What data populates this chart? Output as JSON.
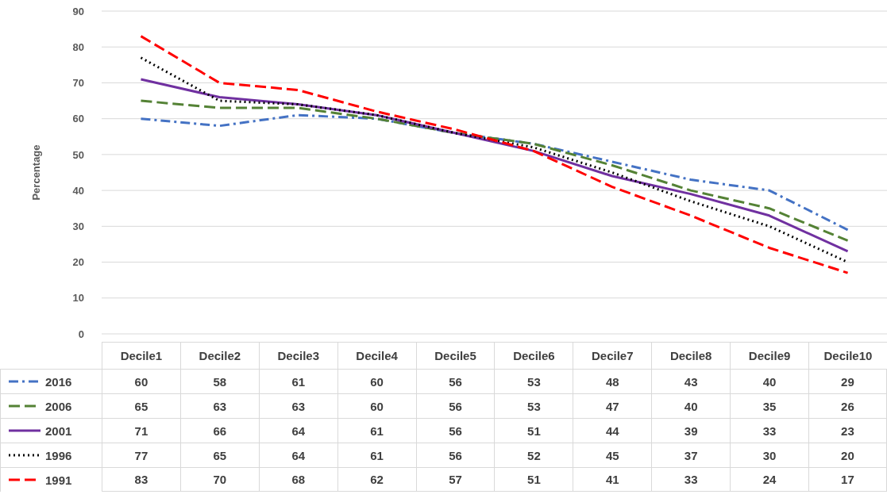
{
  "chart_data": {
    "type": "line",
    "ylabel": "Percentage",
    "categories": [
      "Decile1",
      "Decile2",
      "Decile3",
      "Decile4",
      "Decile5",
      "Decile6",
      "Decile7",
      "Decile8",
      "Decile9",
      "Decile10"
    ],
    "series": [
      {
        "name": "2016",
        "color": "#4472c4",
        "line_style": "dashdot",
        "values": [
          60,
          58,
          61,
          60,
          56,
          53,
          48,
          43,
          40,
          29
        ]
      },
      {
        "name": "2006",
        "color": "#548235",
        "line_style": "dashed",
        "values": [
          65,
          63,
          63,
          60,
          56,
          53,
          47,
          40,
          35,
          26
        ]
      },
      {
        "name": "2001",
        "color": "#7030a0",
        "line_style": "solid",
        "values": [
          71,
          66,
          64,
          61,
          56,
          51,
          44,
          39,
          33,
          23
        ]
      },
      {
        "name": "1996",
        "color": "#000000",
        "line_style": "dotted",
        "values": [
          77,
          65,
          64,
          61,
          56,
          52,
          45,
          37,
          30,
          20
        ]
      },
      {
        "name": "1991",
        "color": "#ff0000",
        "line_style": "dashed",
        "values": [
          83,
          70,
          68,
          62,
          57,
          51,
          41,
          33,
          24,
          17
        ]
      }
    ],
    "ylim": [
      0,
      90
    ],
    "yticks": [
      0,
      10,
      20,
      30,
      40,
      50,
      60,
      70,
      80,
      90
    ],
    "grid": "y",
    "legend": "bottom",
    "data_labels": true,
    "marker": "none"
  }
}
